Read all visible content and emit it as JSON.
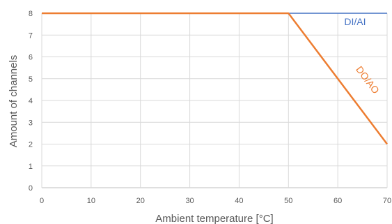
{
  "chart_data": {
    "type": "line",
    "xlabel": "Ambient temperature [°C]",
    "ylabel": "Amount of channels",
    "xlim": [
      0,
      70
    ],
    "ylim": [
      0,
      8
    ],
    "x_ticks": [
      0,
      10,
      20,
      30,
      40,
      50,
      60,
      70
    ],
    "y_ticks": [
      0,
      1,
      2,
      3,
      4,
      5,
      6,
      7,
      8
    ],
    "grid": true,
    "legend": "none",
    "series": [
      {
        "name": "DI/AI",
        "color": "#4472C4",
        "x": [
          0,
          50,
          70
        ],
        "y": [
          8,
          8,
          8
        ]
      },
      {
        "name": "DO/AO",
        "color": "#ED7D31",
        "x": [
          0,
          50,
          70
        ],
        "y": [
          8,
          8,
          2
        ]
      }
    ]
  }
}
